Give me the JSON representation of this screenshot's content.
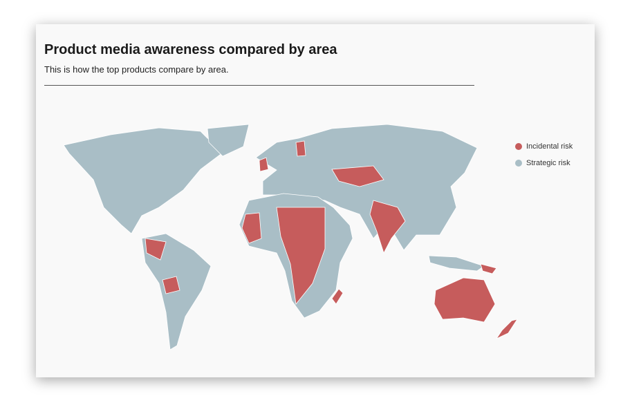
{
  "header": {
    "title": "Product media awareness compared by area",
    "subtitle": "This is how the top products compare by area."
  },
  "legend": [
    {
      "label": "Incidental risk",
      "color": "#c65c5c"
    },
    {
      "label": "Strategic risk",
      "color": "#a9bec6"
    }
  ]
}
